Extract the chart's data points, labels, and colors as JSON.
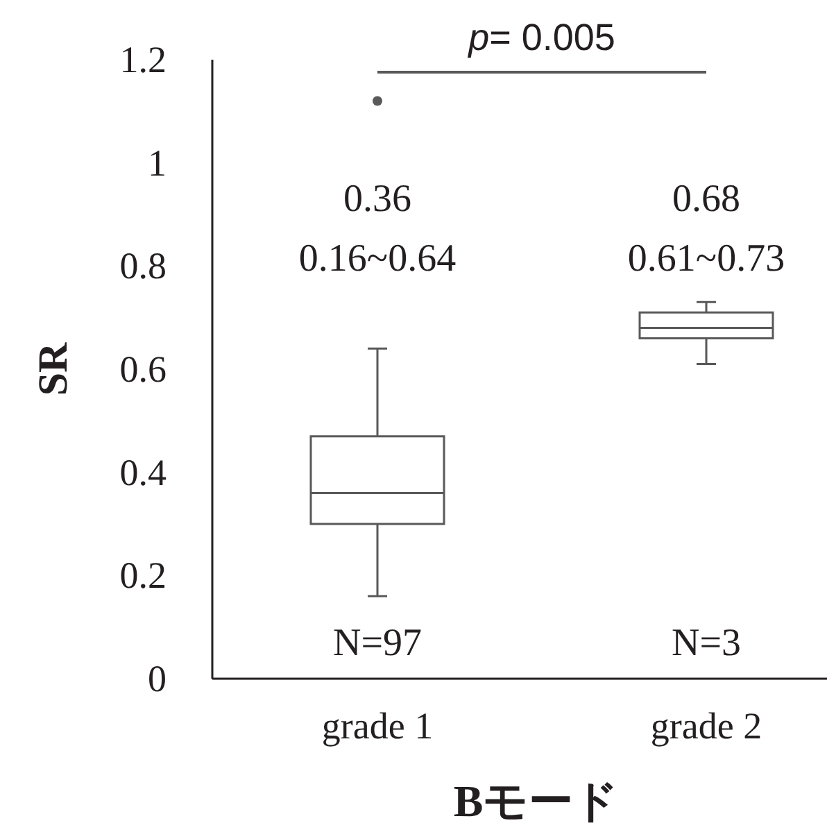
{
  "chart_data": {
    "type": "box",
    "xlabel": "Bモード",
    "ylabel": "SR",
    "categories": [
      "grade 1",
      "grade 2"
    ],
    "ylim": [
      0,
      1.2
    ],
    "yticks": [
      0,
      0.2,
      0.4,
      0.6,
      0.8,
      1,
      1.2
    ],
    "grid": false,
    "color": "#595959",
    "boxes": [
      {
        "low": 0.16,
        "q1": 0.3,
        "median": 0.36,
        "q3": 0.47,
        "high": 0.64,
        "outliers": [
          1.12
        ]
      },
      {
        "low": 0.61,
        "q1": 0.66,
        "median": 0.68,
        "q3": 0.71,
        "high": 0.73
      }
    ],
    "annotations": [
      "*p*= 0.005",
      "0.36",
      "0.16~0.64",
      "N=97",
      "0.68",
      "0.61~0.73",
      "N=3"
    ]
  }
}
